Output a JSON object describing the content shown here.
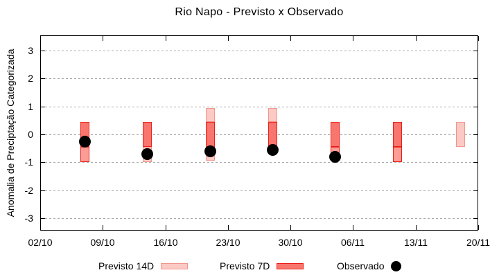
{
  "title": "Rio Napo - Previsto x Observado",
  "y_axis": {
    "label": "Anomalia de Preciptação Categorizada",
    "ticks": [
      3,
      2,
      1,
      0,
      -1,
      -2,
      -3
    ],
    "range": [
      -3.45,
      3.55
    ]
  },
  "x_axis": {
    "ticks": [
      {
        "label": "02/10",
        "day": 0
      },
      {
        "label": "09/10",
        "day": 7
      },
      {
        "label": "16/10",
        "day": 14
      },
      {
        "label": "23/10",
        "day": 21
      },
      {
        "label": "30/10",
        "day": 28
      },
      {
        "label": "06/11",
        "day": 35
      },
      {
        "label": "13/11",
        "day": 42
      },
      {
        "label": "20/11",
        "day": 49
      }
    ],
    "range_days": [
      0,
      49
    ]
  },
  "legend": {
    "items": [
      {
        "label": "Previsto 14D",
        "swatch": "pink"
      },
      {
        "label": "Previsto 7D",
        "swatch": "red"
      },
      {
        "label": "Observado",
        "swatch": "dot"
      }
    ]
  },
  "colors": {
    "forecast14_fill": "#fbcac4",
    "forecast14_border": "#f2968d",
    "forecast7_fill": "#f8766e",
    "forecast7_border": "#ec1d16",
    "forecast7_light_fill": "#fb9d95",
    "observed": "#000000",
    "grid": "#a8a8a8",
    "frame": "#000000"
  },
  "chart_data": {
    "type": "bar",
    "title": "Rio Napo - Previsto x Observado",
    "xlabel": "",
    "ylabel": "Anomalia de Preciptação Categorizada",
    "ylim": [
      -3.45,
      3.55
    ],
    "x_tick_labels": [
      "02/10",
      "09/10",
      "16/10",
      "23/10",
      "30/10",
      "06/11",
      "13/11",
      "20/11"
    ],
    "grid": "horizontal-dashed",
    "legend_position": "bottom",
    "series_legend": [
      "Previsto 14D",
      "Previsto 7D",
      "Observado"
    ],
    "bars": [
      {
        "date": "07/10",
        "day": 5,
        "segments": [
          {
            "style": "red",
            "top": 0.45,
            "bottom": -0.45
          },
          {
            "style": "salmon",
            "top": -0.45,
            "bottom": -1.0
          }
        ],
        "observed": -0.25
      },
      {
        "date": "14/10",
        "day": 12,
        "segments": [
          {
            "style": "red",
            "top": 0.45,
            "bottom": -0.45
          },
          {
            "style": "pink",
            "top": -0.45,
            "bottom": -1.0
          }
        ],
        "observed": -0.7
      },
      {
        "date": "21/10",
        "day": 19,
        "segments": [
          {
            "style": "pink",
            "top": 0.95,
            "bottom": 0.45
          },
          {
            "style": "red",
            "top": 0.45,
            "bottom": -0.5
          },
          {
            "style": "pink",
            "top": -0.5,
            "bottom": -0.95
          }
        ],
        "observed": -0.6
      },
      {
        "date": "28/10",
        "day": 26,
        "segments": [
          {
            "style": "pink",
            "top": 0.95,
            "bottom": 0.45
          },
          {
            "style": "red",
            "top": 0.45,
            "bottom": -0.5
          }
        ],
        "observed": -0.55
      },
      {
        "date": "04/11",
        "day": 33,
        "segments": [
          {
            "style": "red",
            "top": 0.45,
            "bottom": -0.45
          },
          {
            "style": "salmon",
            "top": -0.45,
            "bottom": -0.95
          }
        ],
        "observed": -0.8
      },
      {
        "date": "11/11",
        "day": 40,
        "segments": [
          {
            "style": "red",
            "top": 0.45,
            "bottom": -0.45
          },
          {
            "style": "salmon",
            "top": -0.45,
            "bottom": -1.0
          }
        ],
        "observed": null
      },
      {
        "date": "18/11",
        "day": 47,
        "segments": [
          {
            "style": "pink",
            "top": 0.45,
            "bottom": -0.45
          }
        ],
        "observed": null
      }
    ]
  }
}
